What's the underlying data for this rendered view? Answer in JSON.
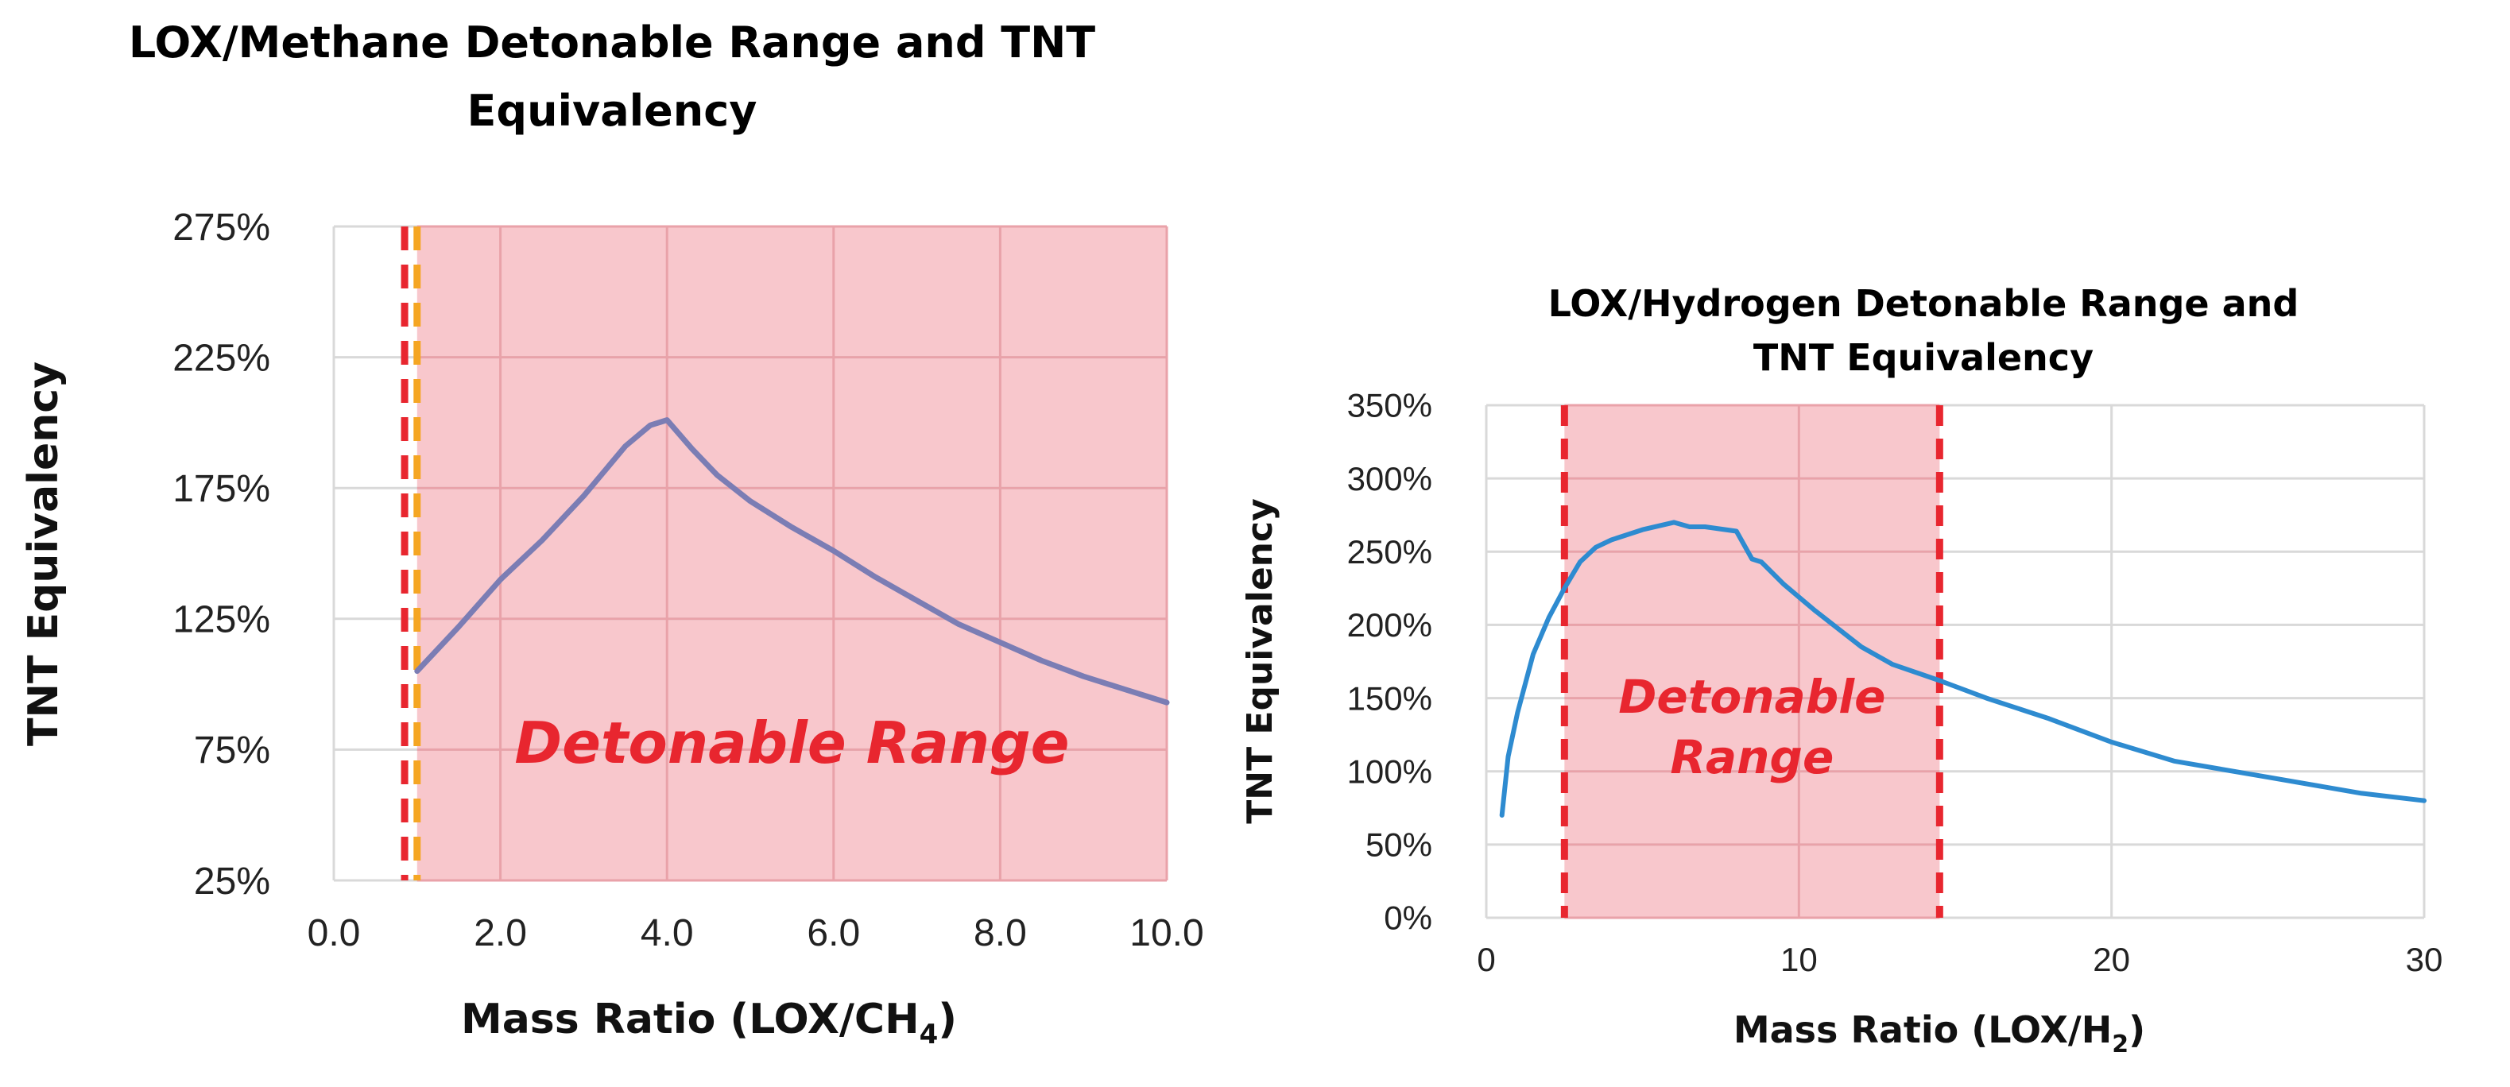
{
  "colors": {
    "detonable_fill": "#f8c7cc",
    "detonable_grid": "#e9a2a9",
    "plain_grid": "#d9d9d9",
    "red_dash": "#e8262f",
    "orange_dash": "#f5a623",
    "methane_line": "#7b7db4",
    "hydrogen_line": "#2e8bd0",
    "annotation": "#e8262f"
  },
  "chart_data": [
    {
      "type": "line",
      "title_lines": [
        "LOX/Methane Detonable Range and TNT",
        "Equivalency"
      ],
      "xlabel": "Mass Ratio (LOX/CH",
      "xlabel_sub": "4",
      "xlabel_close": ")",
      "ylabel": "TNT Equivalency",
      "xlim": [
        0,
        10
      ],
      "ylim": [
        25,
        275
      ],
      "x_ticks": [
        0,
        2,
        4,
        6,
        8,
        10
      ],
      "x_tick_labels": [
        "0.0",
        "2.0",
        "4.0",
        "6.0",
        "8.0",
        "10.0"
      ],
      "y_ticks": [
        25,
        75,
        125,
        175,
        225,
        275
      ],
      "y_tick_labels": [
        "25%",
        "75%",
        "125%",
        "175%",
        "225%",
        "275%"
      ],
      "detonable_range": [
        1.0,
        10.0
      ],
      "boundary_lines": [
        0.85,
        1.0
      ],
      "annotation": "Detonable Range",
      "annotation_lines": [
        "Detonable Range"
      ],
      "annotation_anchor": [
        5.5,
        70
      ],
      "series": [
        {
          "name": "TNT Equivalency",
          "x": [
            1.0,
            1.5,
            2.0,
            2.5,
            3.0,
            3.5,
            3.8,
            4.0,
            4.3,
            4.6,
            5.0,
            5.5,
            6.0,
            6.5,
            7.0,
            7.5,
            8.0,
            8.5,
            9.0,
            9.5,
            10.0
          ],
          "y": [
            105,
            122,
            140,
            155,
            172,
            191,
            199,
            201,
            190,
            180,
            170,
            160,
            151,
            141,
            132,
            123,
            116,
            109,
            103,
            98,
            93
          ]
        }
      ]
    },
    {
      "type": "line",
      "title_lines": [
        "LOX/Hydrogen Detonable Range and",
        "TNT Equivalency"
      ],
      "xlabel": "Mass Ratio (LOX/H",
      "xlabel_sub": "2",
      "xlabel_close": ")",
      "ylabel": "TNT Equivalency",
      "xlim": [
        0,
        30
      ],
      "ylim": [
        0,
        350
      ],
      "x_ticks": [
        0,
        10,
        20,
        30
      ],
      "x_tick_labels": [
        "0",
        "10",
        "20",
        "30"
      ],
      "y_ticks": [
        0,
        50,
        100,
        150,
        200,
        250,
        300,
        350
      ],
      "y_tick_labels": [
        "0%",
        "50%",
        "100%",
        "150%",
        "200%",
        "250%",
        "300%",
        "350%"
      ],
      "detonable_range": [
        2.5,
        14.5
      ],
      "boundary_lines": [
        2.5,
        14.5
      ],
      "annotation": "Detonable Range",
      "annotation_lines": [
        "Detonable",
        "Range"
      ],
      "annotation_anchor": [
        8.5,
        140
      ],
      "series": [
        {
          "name": "TNT Equivalency",
          "x": [
            0.5,
            0.7,
            1.0,
            1.5,
            2.0,
            2.5,
            3.0,
            3.5,
            4.0,
            5.0,
            6.0,
            6.5,
            7.0,
            8.0,
            8.5,
            8.8,
            9.5,
            10.5,
            12.0,
            13.0,
            14.5,
            16.0,
            18.0,
            20.0,
            22.0,
            25.0,
            28.0,
            30.0
          ],
          "y": [
            70,
            110,
            140,
            180,
            205,
            225,
            243,
            253,
            258,
            265,
            270,
            267,
            267,
            264,
            245,
            243,
            228,
            210,
            185,
            173,
            162,
            150,
            136,
            120,
            107,
            96,
            85,
            80
          ]
        }
      ]
    }
  ]
}
